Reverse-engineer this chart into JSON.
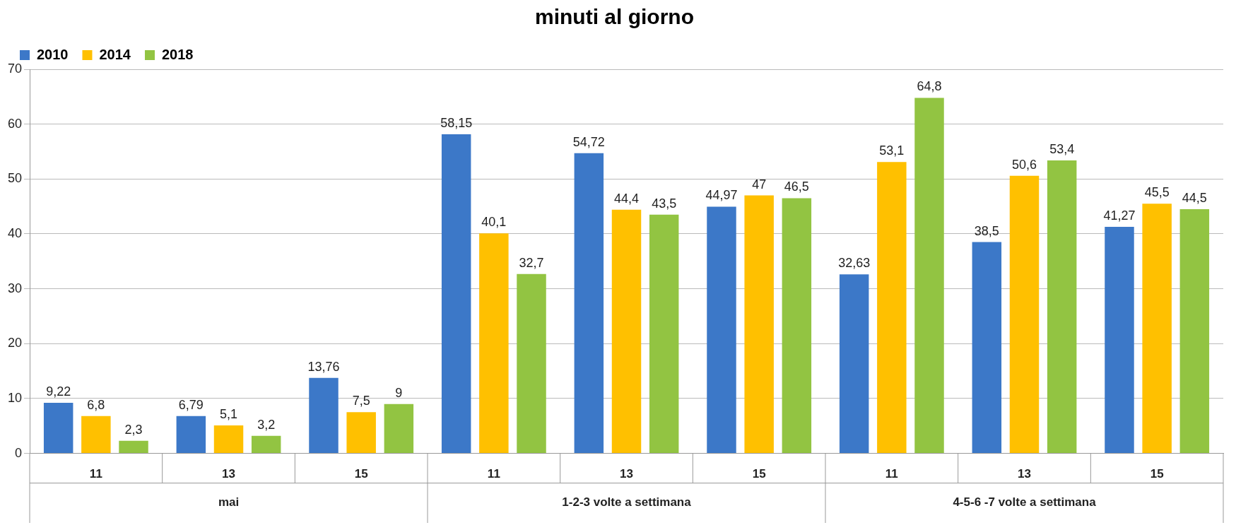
{
  "chart_data": {
    "type": "bar",
    "title": "minuti al giorno",
    "categories": [
      "11",
      "13",
      "15",
      "11",
      "13",
      "15",
      "11",
      "13",
      "15"
    ],
    "annotations": [
      "mai",
      "1-2-3 volte a settimana",
      "4-5-6 -7 volte a settimana"
    ],
    "series": [
      {
        "name": "2010",
        "color": "#3c78c8",
        "values": [
          9.22,
          6.79,
          13.76,
          58.15,
          54.72,
          44.97,
          32.63,
          38.5,
          41.27
        ],
        "value_labels": [
          "9,22",
          "6,79",
          "13,76",
          "58,15",
          "54,72",
          "44,97",
          "32,63",
          "38,5",
          "41,27"
        ]
      },
      {
        "name": "2014",
        "color": "#ffc000",
        "values": [
          6.8,
          5.1,
          7.5,
          40.1,
          44.4,
          47,
          53.1,
          50.6,
          45.5
        ],
        "value_labels": [
          "6,8",
          "5,1",
          "7,5",
          "40,1",
          "44,4",
          "47",
          "53,1",
          "50,6",
          "45,5"
        ]
      },
      {
        "name": "2018",
        "color": "#92c442",
        "values": [
          2.3,
          3.2,
          9,
          32.7,
          43.5,
          46.5,
          64.8,
          53.4,
          44.5
        ],
        "value_labels": [
          "2,3",
          "3,2",
          "9",
          "32,7",
          "43,5",
          "46,5",
          "64,8",
          "53,4",
          "44,5"
        ]
      }
    ],
    "ylim": [
      0,
      70
    ],
    "yticks": [
      0,
      10,
      20,
      30,
      40,
      50,
      60,
      70
    ],
    "grid": "y",
    "legend": "top left"
  }
}
